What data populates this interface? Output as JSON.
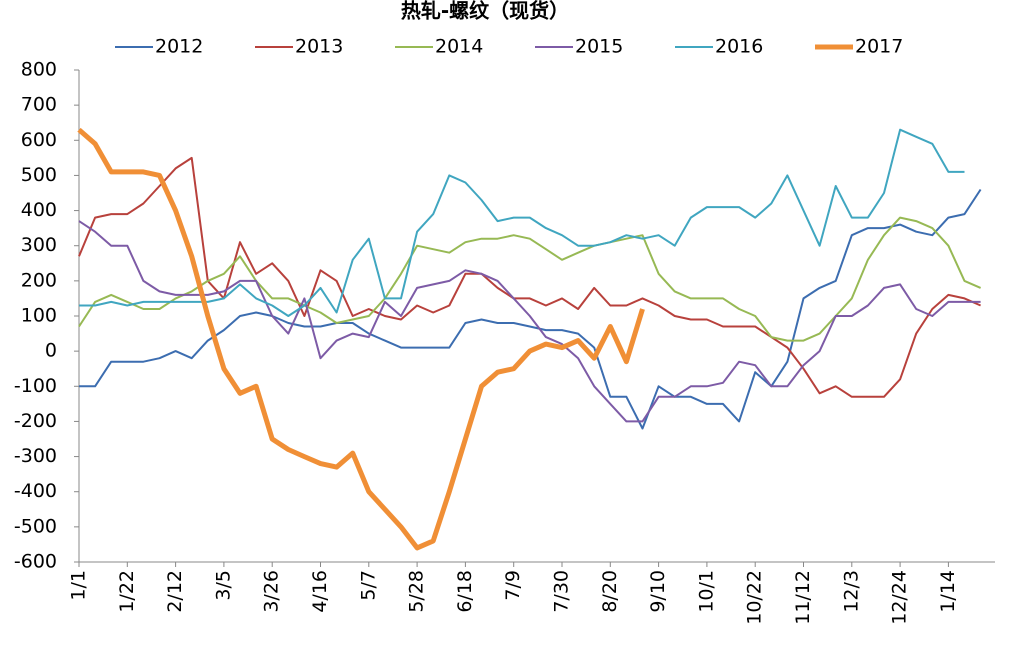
{
  "chart_data": {
    "type": "line",
    "title": "热轧-螺纹（现货）",
    "categories": [
      "1/1",
      null,
      null,
      "1/22",
      null,
      null,
      "2/12",
      null,
      null,
      "3/5",
      null,
      null,
      "3/26",
      null,
      null,
      "4/16",
      null,
      null,
      "5/7",
      null,
      null,
      "5/28",
      null,
      null,
      "6/18",
      null,
      null,
      "7/9",
      null,
      null,
      "7/30",
      null,
      null,
      "8/20",
      null,
      null,
      "9/10",
      null,
      null,
      "10/1",
      null,
      null,
      "10/22",
      null,
      null,
      "11/12",
      null,
      null,
      "12/3",
      null,
      null,
      "12/24",
      null,
      null,
      "1/14",
      null,
      null
    ],
    "series": [
      {
        "name": "2012",
        "color": "#3c6db0",
        "width": 2,
        "values": [
          -100,
          -100,
          -30,
          -30,
          -30,
          -20,
          0,
          -20,
          30,
          60,
          100,
          110,
          100,
          80,
          70,
          70,
          80,
          80,
          50,
          30,
          10,
          10,
          10,
          10,
          80,
          90,
          80,
          80,
          70,
          60,
          60,
          50,
          10,
          -130,
          -130,
          -220,
          -100,
          -130,
          -130,
          -150,
          -150,
          -200,
          -60,
          -100,
          -30,
          150,
          180,
          200,
          330,
          350,
          350,
          360,
          340,
          330,
          380,
          390,
          460
        ]
      },
      {
        "name": "2013",
        "color": "#b8413c",
        "width": 2,
        "values": [
          270,
          380,
          390,
          390,
          420,
          470,
          520,
          550,
          200,
          150,
          310,
          220,
          250,
          200,
          100,
          230,
          200,
          100,
          120,
          100,
          90,
          130,
          110,
          130,
          220,
          220,
          180,
          150,
          150,
          130,
          150,
          120,
          180,
          130,
          130,
          150,
          130,
          100,
          90,
          90,
          70,
          70,
          70,
          40,
          10,
          -50,
          -120,
          -100,
          -130,
          -130,
          -130,
          -80,
          50,
          120,
          160,
          150,
          130
        ]
      },
      {
        "name": "2014",
        "color": "#97b954",
        "width": 2,
        "values": [
          70,
          140,
          160,
          140,
          120,
          120,
          150,
          170,
          200,
          220,
          270,
          200,
          150,
          150,
          130,
          110,
          80,
          90,
          100,
          150,
          220,
          300,
          290,
          280,
          310,
          320,
          320,
          330,
          320,
          290,
          260,
          280,
          300,
          310,
          320,
          330,
          220,
          170,
          150,
          150,
          150,
          120,
          100,
          40,
          30,
          30,
          50,
          100,
          150,
          260,
          330,
          380,
          370,
          350,
          300,
          200,
          180
        ]
      },
      {
        "name": "2015",
        "color": "#7d5ba6",
        "width": 2,
        "values": [
          370,
          340,
          300,
          300,
          200,
          170,
          160,
          160,
          160,
          170,
          200,
          200,
          100,
          50,
          150,
          -20,
          30,
          50,
          40,
          140,
          100,
          180,
          190,
          200,
          230,
          220,
          200,
          150,
          100,
          40,
          20,
          -20,
          -100,
          -150,
          -200,
          -200,
          -130,
          -130,
          -100,
          -100,
          -90,
          -30,
          -40,
          -100,
          -100,
          -40,
          0,
          100,
          100,
          130,
          180,
          190,
          120,
          100,
          140,
          140,
          140
        ]
      },
      {
        "name": "2016",
        "color": "#40a6c0",
        "width": 2,
        "values": [
          130,
          130,
          140,
          130,
          140,
          140,
          140,
          140,
          140,
          150,
          190,
          150,
          130,
          100,
          130,
          180,
          110,
          260,
          320,
          150,
          150,
          340,
          390,
          500,
          480,
          430,
          370,
          380,
          380,
          350,
          330,
          300,
          300,
          310,
          330,
          320,
          330,
          300,
          380,
          410,
          410,
          410,
          380,
          420,
          500,
          400,
          300,
          470,
          380,
          380,
          450,
          630,
          610,
          590,
          510,
          510,
          null
        ]
      },
      {
        "name": "2017",
        "color": "#f08f36",
        "width": 5,
        "values": [
          630,
          590,
          510,
          510,
          510,
          500,
          400,
          270,
          100,
          -50,
          -120,
          -100,
          -250,
          -280,
          -300,
          -320,
          -330,
          -290,
          -400,
          -450,
          -500,
          -560,
          -540,
          -400,
          -250,
          -100,
          -60,
          -50,
          0,
          20,
          10,
          30,
          -20,
          70,
          -30,
          120,
          null,
          null,
          null,
          null,
          null,
          null,
          null,
          null,
          null,
          null,
          null,
          null,
          null,
          null,
          null,
          null,
          null,
          null,
          null,
          null,
          null
        ]
      }
    ],
    "ylim": [
      -600,
      800
    ],
    "yticks": [
      -600,
      -500,
      -400,
      -300,
      -200,
      -100,
      0,
      100,
      200,
      300,
      400,
      500,
      600,
      700,
      800
    ],
    "grid": false
  }
}
